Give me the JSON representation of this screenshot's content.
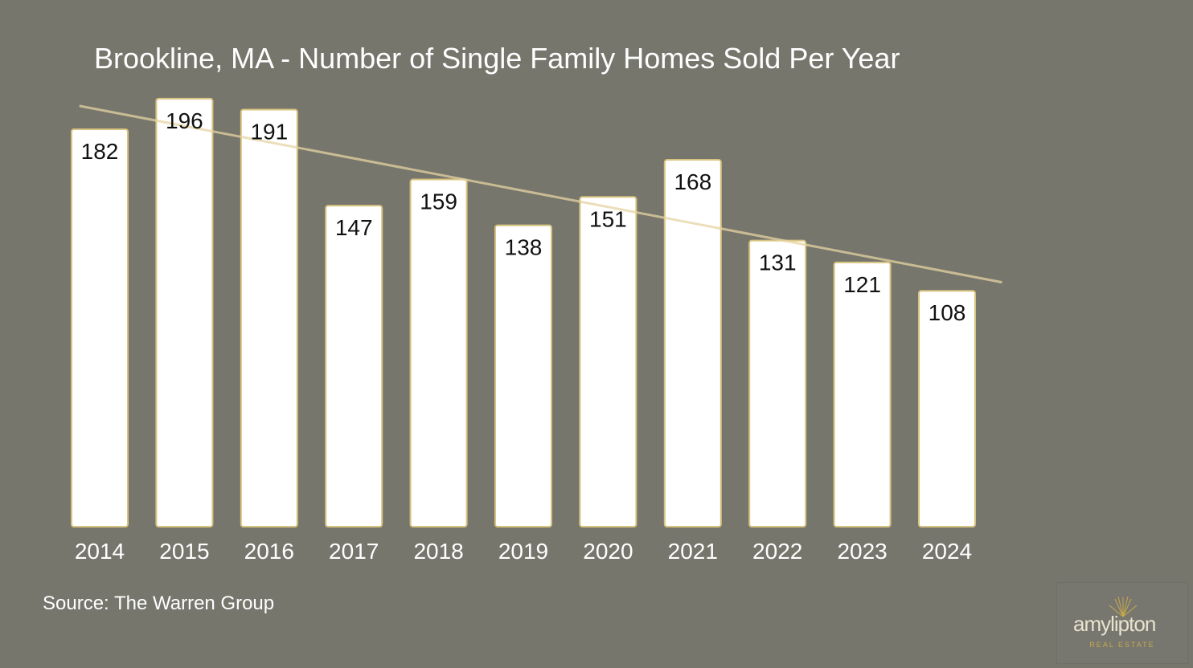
{
  "chart_data": {
    "type": "bar",
    "title": "Brookline, MA - Number of Single Family Homes Sold Per Year",
    "categories": [
      "2014",
      "2015",
      "2016",
      "2017",
      "2018",
      "2019",
      "2020",
      "2021",
      "2022",
      "2023",
      "2024"
    ],
    "values": [
      182,
      196,
      191,
      147,
      159,
      138,
      151,
      168,
      131,
      121,
      108
    ],
    "xlabel": "",
    "ylabel": "",
    "ylim": [
      0,
      200
    ],
    "grid": false,
    "legend": "none",
    "data_labels": true,
    "trendline": "linear",
    "colors": {
      "background": "#76766d",
      "bar_fill": "#ffffff",
      "bar_border": "#d8c27e",
      "trendline": "#e6d3a0",
      "text": "#ffffff",
      "label": "#111111"
    }
  },
  "footer": {
    "source": "Source: The Warren Group"
  },
  "logo": {
    "name": "amylipton",
    "tagline": "REAL ESTATE",
    "accent": "#c9a94c"
  }
}
